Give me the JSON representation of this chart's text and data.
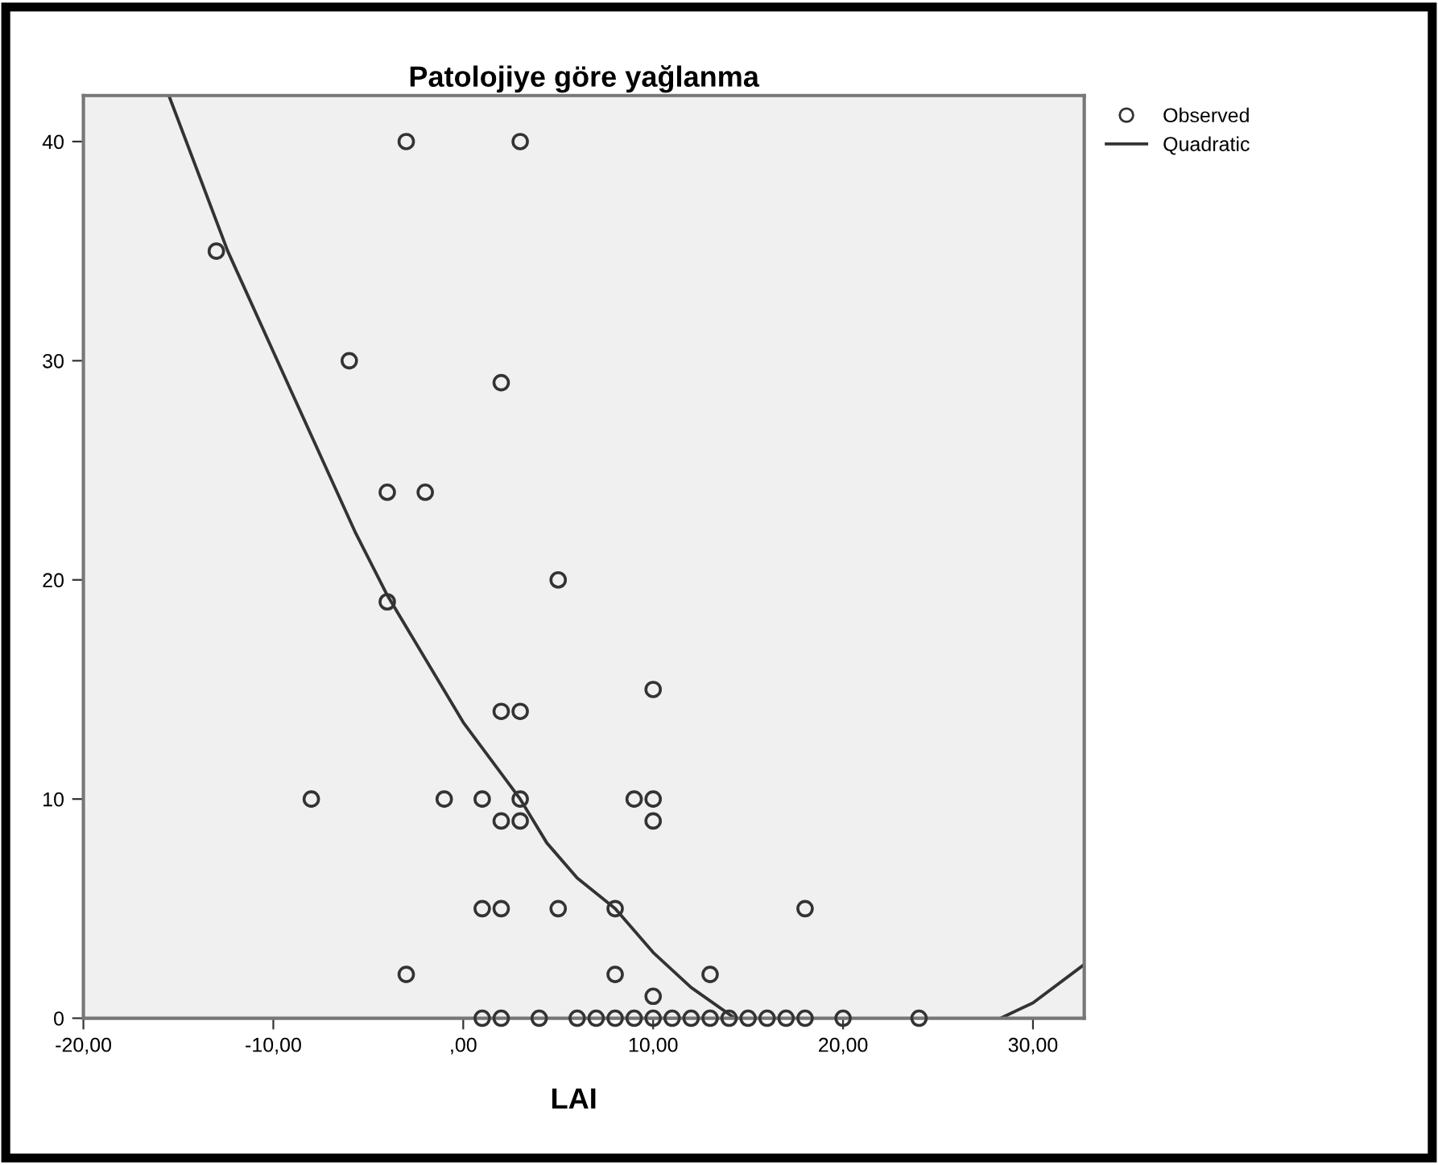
{
  "chart_data": {
    "type": "scatter",
    "title": "Patolojiye göre yağlanma",
    "xlabel": "LAI",
    "xlim": [
      -20,
      32.7
    ],
    "ylim": [
      0,
      42.1
    ],
    "xticks": [
      {
        "value": -20,
        "label": "-20,00"
      },
      {
        "value": -10,
        "label": "-10,00"
      },
      {
        "value": 0,
        "label": ",00"
      },
      {
        "value": 10,
        "label": "10,00"
      },
      {
        "value": 20,
        "label": "20,00"
      },
      {
        "value": 30,
        "label": "30,00"
      }
    ],
    "yticks": [
      0,
      10,
      20,
      30,
      40
    ],
    "grid": false,
    "legend": "top right",
    "series": [
      {
        "name": "Observed",
        "marker": "circle",
        "color": "#333333",
        "x": [
          -13,
          -3,
          3,
          -6,
          2,
          -4,
          -2,
          -4,
          5,
          2,
          3,
          10,
          -8,
          -1,
          1,
          3,
          9,
          10,
          2,
          3,
          10,
          1,
          2,
          5,
          8,
          18,
          -3,
          8,
          13,
          10,
          1,
          2,
          4,
          6,
          7,
          8,
          9,
          10,
          11,
          12,
          13,
          14,
          15,
          16,
          17,
          18,
          20,
          24
        ],
        "values": [
          35,
          40,
          40,
          30,
          29,
          24,
          24,
          19,
          20,
          14,
          14,
          15,
          10,
          10,
          10,
          10,
          10,
          10,
          9,
          9,
          9,
          5,
          5,
          5,
          5,
          5,
          2,
          2,
          2,
          1,
          0,
          0,
          0,
          0,
          0,
          0,
          0,
          0,
          0,
          0,
          0,
          0,
          0,
          0,
          0,
          0,
          0,
          0
        ]
      },
      {
        "name": "Quadratic",
        "type": "line",
        "color": "#333333",
        "x": [
          -15.5,
          -12.4,
          -9,
          -5.7,
          -4,
          0,
          3,
          4.4,
          6,
          8,
          10,
          12,
          14.3,
          20,
          28.3,
          30,
          32.7
        ],
        "values": [
          42.1,
          35,
          28.5,
          22.2,
          19.3,
          13.5,
          10,
          8,
          6.4,
          5,
          3,
          1.4,
          0,
          null,
          0,
          0.7,
          2.45
        ]
      }
    ]
  }
}
